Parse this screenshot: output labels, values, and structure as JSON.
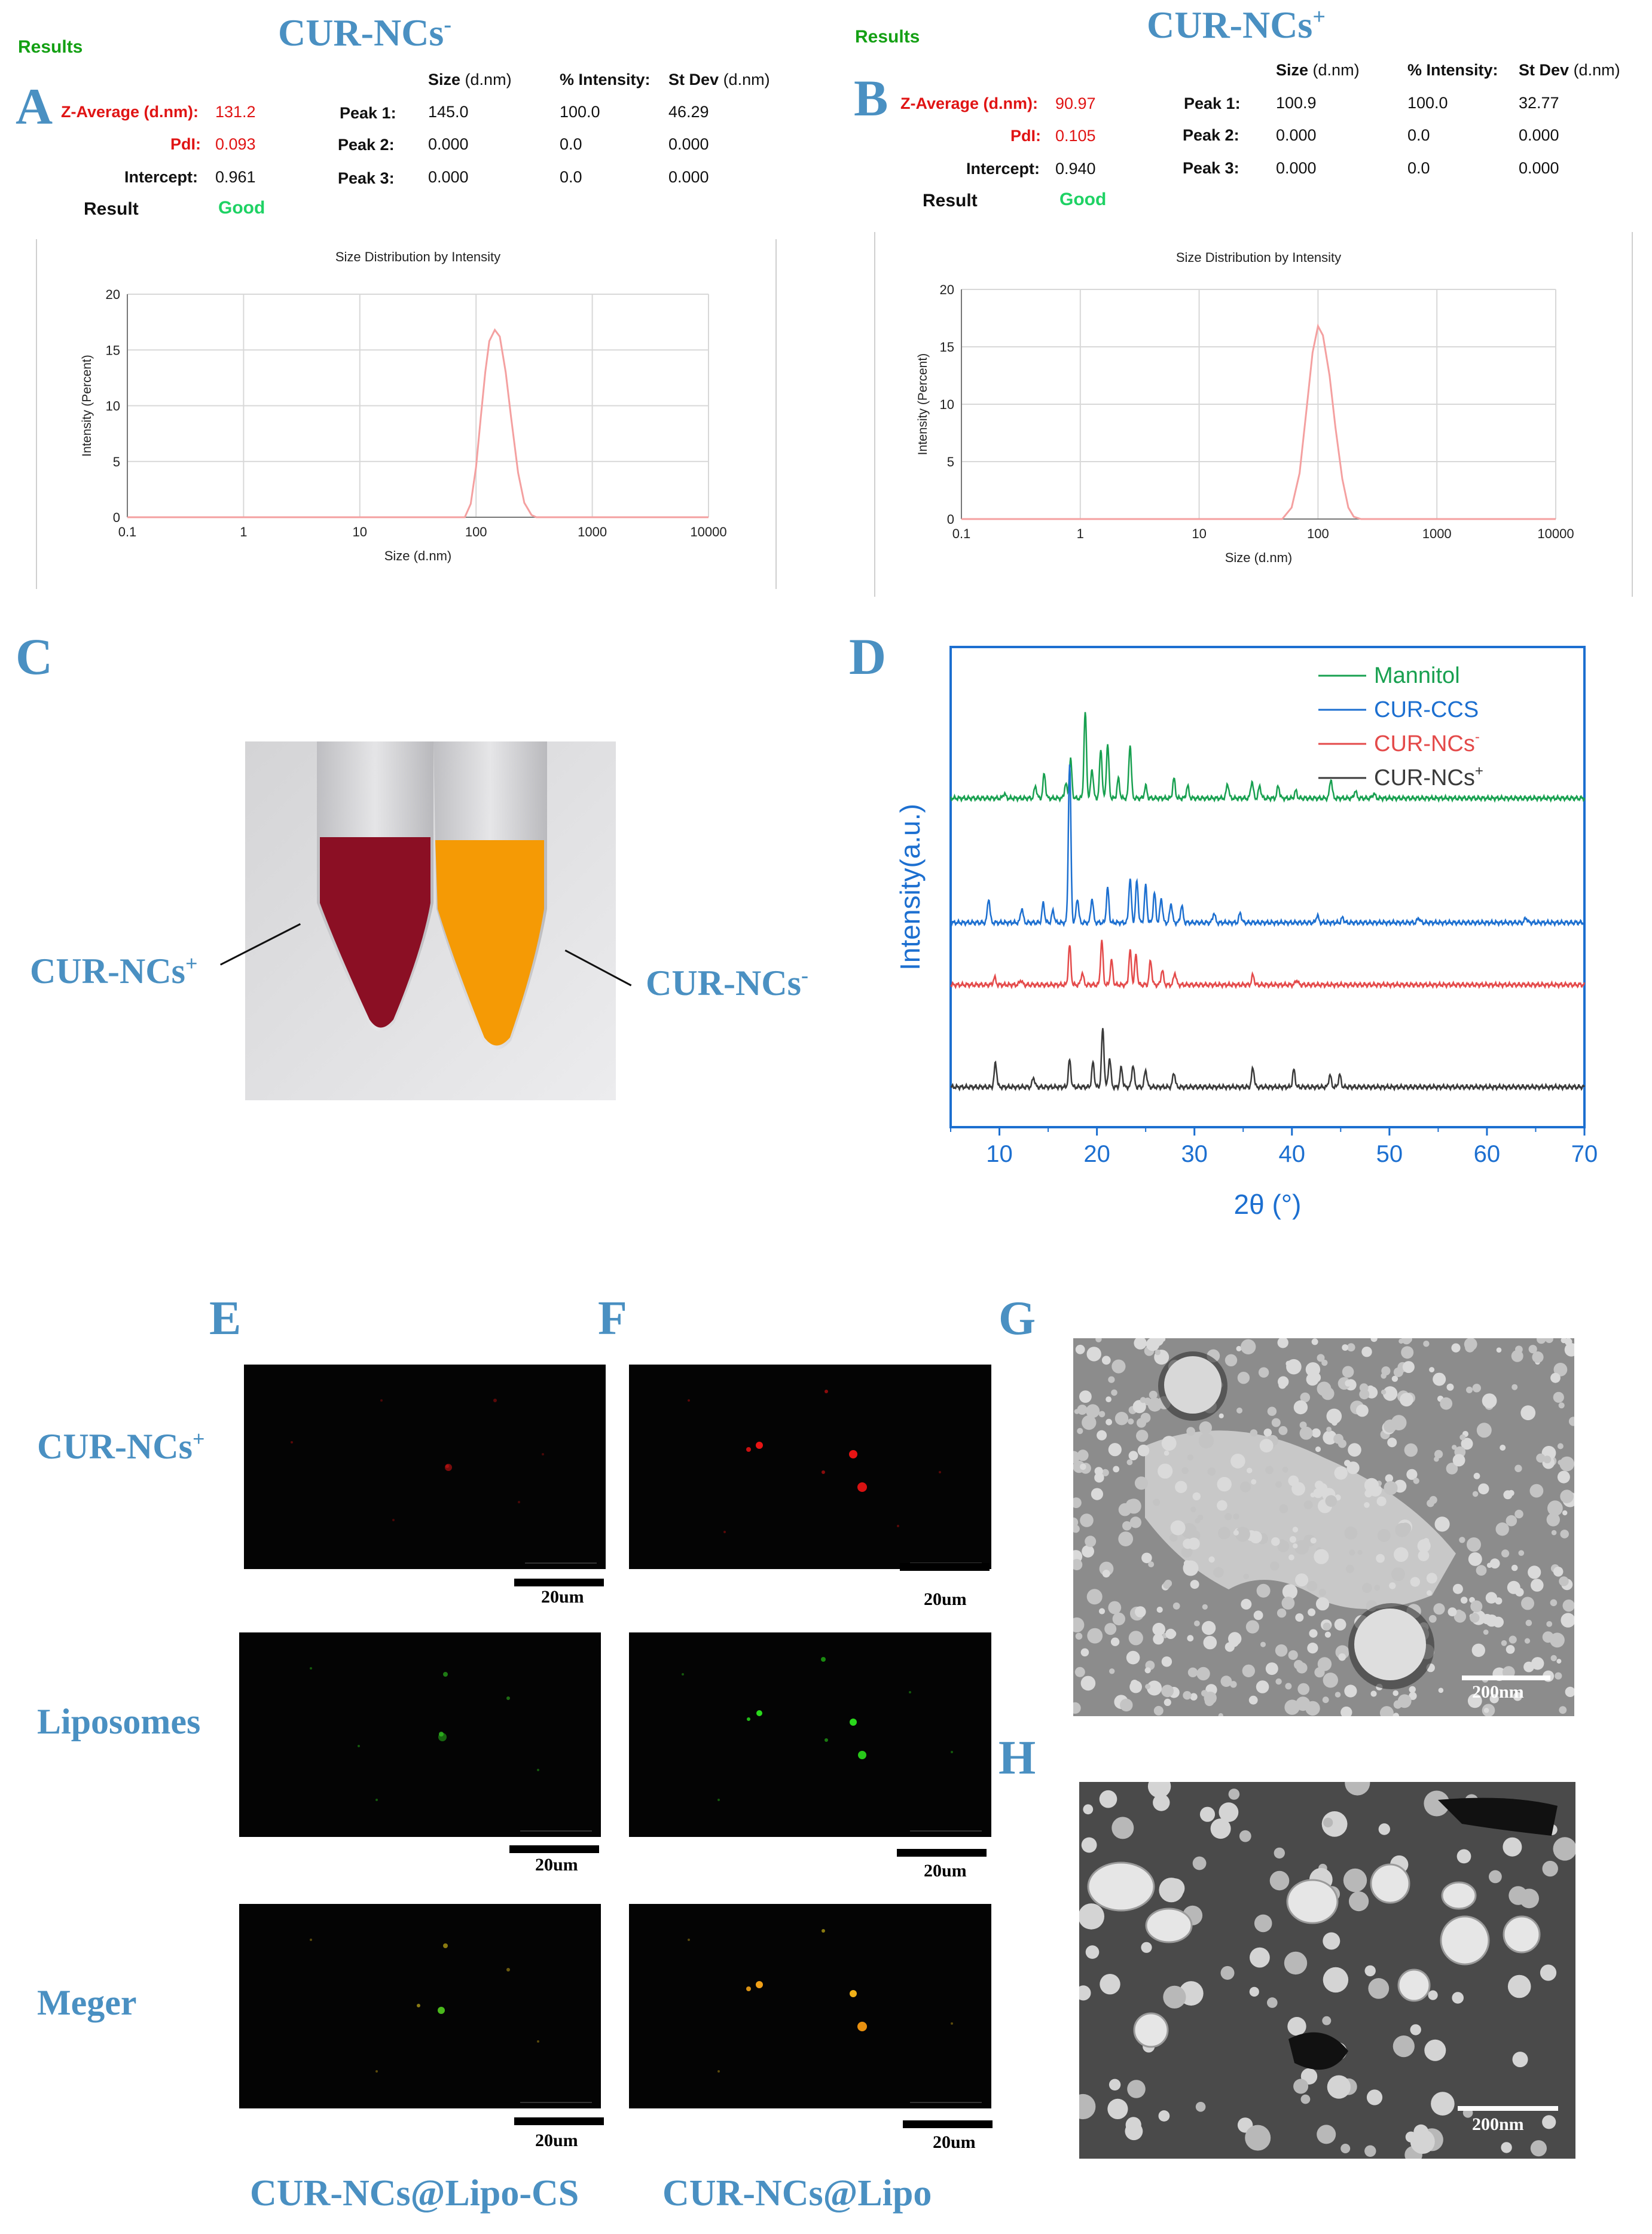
{
  "panels": {
    "A": {
      "label": "A",
      "title": "CUR-NCs",
      "title_sup": "-",
      "results": "Results",
      "metrics": {
        "zavg_label": "Z-Average (d.nm):",
        "zavg": "131.2",
        "pdi_label": "PdI:",
        "pdi": "0.093",
        "intercept_label": "Intercept:",
        "intercept": "0.961",
        "result_label": "Result",
        "result": "Good"
      },
      "table": {
        "headers": [
          "Size",
          "(d.nm)",
          "% Intensity:",
          "St Dev",
          "(d.nm)"
        ],
        "rows": [
          [
            "Peak 1:",
            "145.0",
            "100.0",
            "46.29"
          ],
          [
            "Peak 2:",
            "0.000",
            "0.0",
            "0.000"
          ],
          [
            "Peak 3:",
            "0.000",
            "0.0",
            "0.000"
          ]
        ]
      }
    },
    "B": {
      "label": "B",
      "title": "CUR-NCs",
      "title_sup": "+",
      "results": "Results",
      "metrics": {
        "zavg_label": "Z-Average (d.nm):",
        "zavg": "90.97",
        "pdi_label": "PdI:",
        "pdi": "0.105",
        "intercept_label": "Intercept:",
        "intercept": "0.940",
        "result_label": "Result",
        "result": "Good"
      },
      "table": {
        "headers": [
          "Size",
          "(d.nm)",
          "% Intensity:",
          "St Dev",
          "(d.nm)"
        ],
        "rows": [
          [
            "Peak 1:",
            "100.9",
            "100.0",
            "32.77"
          ],
          [
            "Peak 2:",
            "0.000",
            "0.0",
            "0.000"
          ],
          [
            "Peak 3:",
            "0.000",
            "0.0",
            "0.000"
          ]
        ]
      }
    },
    "C": {
      "label": "C",
      "tube_left": "CUR-NCs",
      "tube_left_sup": "+",
      "tube_right": "CUR-NCs",
      "tube_right_sup": "-",
      "colors": {
        "left": "#8b0f24",
        "right": "#f59a05"
      }
    },
    "D": {
      "label": "D"
    },
    "E": {
      "label": "E",
      "caption": "CUR-NCs@Lipo-CS"
    },
    "F": {
      "label": "F",
      "caption": "CUR-NCs@Lipo"
    },
    "G": {
      "label": "G",
      "scale": "200nm"
    },
    "H": {
      "label": "H",
      "scale": "200nm"
    },
    "rows": {
      "r1": "CUR-NCs",
      "r1_sup": "+",
      "r2": "Liposomes",
      "r3": "Meger"
    },
    "micro_scale": "20um"
  },
  "chart_data": [
    {
      "type": "line",
      "panel": "A",
      "title": "Size Distribution by Intensity",
      "xlabel": "Size (d.nm)",
      "ylabel": "Intensity (Percent)",
      "x_scale": "log",
      "xlim": [
        0.1,
        10000
      ],
      "ylim": [
        0,
        20
      ],
      "x_ticks": [
        "0.1",
        "1",
        "10",
        "100",
        "1000",
        "10000"
      ],
      "y_ticks": [
        "0",
        "5",
        "10",
        "15",
        "20"
      ],
      "grid": true,
      "series": [
        {
          "color": "#f4a0a0",
          "peak_x": 145.0,
          "peak_y": 16.8,
          "x": [
            80,
            90,
            100,
            110,
            120,
            130,
            145,
            160,
            180,
            200,
            230,
            260,
            300,
            330
          ],
          "y": [
            0,
            1.2,
            4.5,
            9.0,
            13.0,
            15.8,
            16.8,
            16.2,
            13.0,
            9.0,
            4.0,
            1.3,
            0.2,
            0
          ]
        }
      ]
    },
    {
      "type": "line",
      "panel": "B",
      "title": "Size Distribution by Intensity",
      "xlabel": "Size (d.nm)",
      "ylabel": "Intensity (Percent)",
      "x_scale": "log",
      "xlim": [
        0.1,
        10000
      ],
      "ylim": [
        0,
        20
      ],
      "x_ticks": [
        "0.1",
        "1",
        "10",
        "100",
        "1000",
        "10000"
      ],
      "y_ticks": [
        "0",
        "5",
        "10",
        "15",
        "20"
      ],
      "grid": true,
      "series": [
        {
          "color": "#f4a0a0",
          "x": [
            50,
            60,
            70,
            80,
            90,
            100,
            110,
            125,
            140,
            160,
            180,
            200,
            230
          ],
          "y": [
            0,
            1.0,
            4.0,
            9.5,
            14.5,
            16.8,
            16.0,
            12.5,
            8.0,
            3.5,
            1.0,
            0.2,
            0
          ]
        }
      ]
    },
    {
      "type": "line",
      "panel": "D",
      "title": "",
      "xlabel": "2θ (°)",
      "ylabel": "Intensity(a.u.)",
      "xlim": [
        5,
        70
      ],
      "x_ticks": [
        "10",
        "20",
        "30",
        "40",
        "50",
        "60",
        "70"
      ],
      "legend_position": "top-right",
      "series": [
        {
          "name": "Mannitol",
          "color": "#18a050",
          "offset": 0.7,
          "peaks": [
            [
              10.5,
              0.02
            ],
            [
              13.7,
              0.05
            ],
            [
              14.6,
              0.1
            ],
            [
              16.8,
              0.06
            ],
            [
              17.3,
              0.16
            ],
            [
              18.8,
              0.35
            ],
            [
              19.5,
              0.12
            ],
            [
              20.4,
              0.2
            ],
            [
              21.1,
              0.22
            ],
            [
              22.2,
              0.08
            ],
            [
              23.4,
              0.22
            ],
            [
              25.0,
              0.05
            ],
            [
              27.9,
              0.08
            ],
            [
              29.3,
              0.05
            ],
            [
              33.4,
              0.06
            ],
            [
              35.9,
              0.07
            ],
            [
              36.7,
              0.05
            ],
            [
              38.6,
              0.05
            ],
            [
              40.4,
              0.03
            ],
            [
              44.0,
              0.08
            ],
            [
              46.5,
              0.03
            ],
            [
              48.4,
              0.02
            ]
          ]
        },
        {
          "name": "CUR-CCS",
          "color": "#1c6fd0",
          "offset": 0.42,
          "peaks": [
            [
              8.9,
              0.1
            ],
            [
              12.3,
              0.06
            ],
            [
              14.5,
              0.08
            ],
            [
              15.5,
              0.05
            ],
            [
              17.2,
              0.65
            ],
            [
              18.0,
              0.1
            ],
            [
              19.5,
              0.1
            ],
            [
              21.1,
              0.14
            ],
            [
              23.4,
              0.18
            ],
            [
              24.1,
              0.17
            ],
            [
              25.0,
              0.15
            ],
            [
              25.9,
              0.12
            ],
            [
              26.6,
              0.1
            ],
            [
              27.6,
              0.08
            ],
            [
              28.7,
              0.07
            ],
            [
              32.0,
              0.04
            ],
            [
              34.7,
              0.04
            ],
            [
              42.6,
              0.03
            ],
            [
              45.2,
              0.02
            ],
            [
              53.0,
              0.02
            ],
            [
              64.0,
              0.02
            ]
          ]
        },
        {
          "name": "CUR-NCs",
          "name_sup": "-",
          "color": "#e44a4a",
          "offset": 0.28,
          "peaks": [
            [
              9.5,
              0.03
            ],
            [
              12.2,
              0.02
            ],
            [
              17.2,
              0.16
            ],
            [
              18.5,
              0.05
            ],
            [
              20.5,
              0.18
            ],
            [
              21.5,
              0.1
            ],
            [
              23.4,
              0.14
            ],
            [
              24.0,
              0.12
            ],
            [
              25.5,
              0.1
            ],
            [
              26.7,
              0.06
            ],
            [
              28.0,
              0.05
            ],
            [
              36.0,
              0.04
            ],
            [
              40.5,
              0.02
            ]
          ]
        },
        {
          "name": "CUR-NCs",
          "name_sup": "+",
          "color": "#3a3a3a",
          "offset": 0.05,
          "peaks": [
            [
              9.6,
              0.1
            ],
            [
              13.5,
              0.04
            ],
            [
              17.2,
              0.11
            ],
            [
              19.6,
              0.1
            ],
            [
              20.6,
              0.24
            ],
            [
              21.3,
              0.12
            ],
            [
              22.5,
              0.08
            ],
            [
              23.7,
              0.09
            ],
            [
              25.0,
              0.07
            ],
            [
              27.9,
              0.06
            ],
            [
              36.0,
              0.08
            ],
            [
              40.2,
              0.07
            ],
            [
              43.9,
              0.05
            ],
            [
              44.9,
              0.05
            ]
          ]
        }
      ]
    }
  ]
}
